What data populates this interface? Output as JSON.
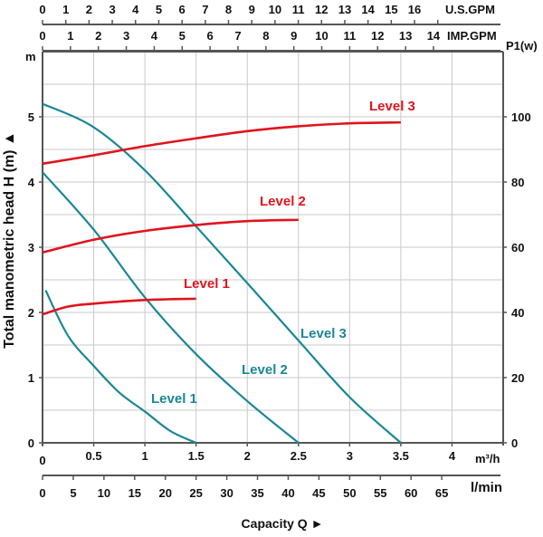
{
  "chart_data": {
    "type": "line",
    "xlabel": "Capacity Q ►",
    "ylabel": "Total manometric head H (m) ▲",
    "y_unit": "m",
    "y2_unit": "P1(w)",
    "x_unit": "m³/h",
    "xlim": [
      0,
      4.5
    ],
    "ylim": [
      0,
      6
    ],
    "y2lim": [
      0,
      120
    ],
    "grid": true,
    "x_ticks": [
      0,
      0.5,
      1,
      1.5,
      2,
      2.5,
      3,
      3.5,
      4
    ],
    "y_ticks": [
      0,
      1,
      2,
      3,
      4,
      5
    ],
    "y2_ticks": [
      0,
      20,
      40,
      60,
      80,
      100
    ],
    "secondary_axes": {
      "us_gpm": {
        "label": "U.S.GPM",
        "ticks": [
          0,
          1,
          2,
          3,
          4,
          5,
          6,
          7,
          8,
          9,
          10,
          11,
          12,
          13,
          14,
          15,
          16
        ]
      },
      "imp_gpm": {
        "label": "IMP.GPM",
        "ticks": [
          0,
          1,
          2,
          3,
          4,
          5,
          6,
          7,
          8,
          9,
          10,
          11,
          12,
          13,
          14
        ]
      },
      "l_min": {
        "label": "l/min",
        "ticks": [
          0,
          5,
          10,
          15,
          20,
          25,
          30,
          35,
          40,
          45,
          50,
          55,
          60,
          65
        ]
      }
    },
    "head_series": [
      {
        "name": "Level 3",
        "color": "#1a8797",
        "x": [
          0,
          0.5,
          1,
          1.5,
          2,
          2.5,
          3,
          3.5
        ],
        "y": [
          5.2,
          4.84,
          4.18,
          3.32,
          2.45,
          1.57,
          0.7,
          0
        ]
      },
      {
        "name": "Level 2",
        "color": "#1a8797",
        "x": [
          0,
          0.5,
          1,
          1.5,
          2,
          2.5
        ],
        "y": [
          4.15,
          3.27,
          2.23,
          1.36,
          0.64,
          0
        ]
      },
      {
        "name": "Level 1",
        "color": "#1a8797",
        "x": [
          0.03,
          0.25,
          0.5,
          0.75,
          1,
          1.25,
          1.5
        ],
        "y": [
          2.34,
          1.64,
          1.18,
          0.77,
          0.48,
          0.18,
          0
        ]
      }
    ],
    "power_series": [
      {
        "name": "Level 3",
        "color": "#e0141e",
        "x": [
          0,
          0.5,
          1,
          1.5,
          2,
          2.5,
          3,
          3.5
        ],
        "y": [
          85.6,
          88.2,
          91,
          93.4,
          95.6,
          97.1,
          98,
          98.3
        ]
      },
      {
        "name": "Level 2",
        "color": "#e0141e",
        "x": [
          0,
          0.5,
          1,
          1.5,
          2,
          2.5
        ],
        "y": [
          58.4,
          62.3,
          65,
          66.8,
          68,
          68.4
        ]
      },
      {
        "name": "Level 1",
        "color": "#e0141e",
        "x": [
          0,
          0.25,
          0.5,
          1,
          1.5
        ],
        "y": [
          39.4,
          41.8,
          42.7,
          43.8,
          44.2
        ]
      }
    ]
  }
}
